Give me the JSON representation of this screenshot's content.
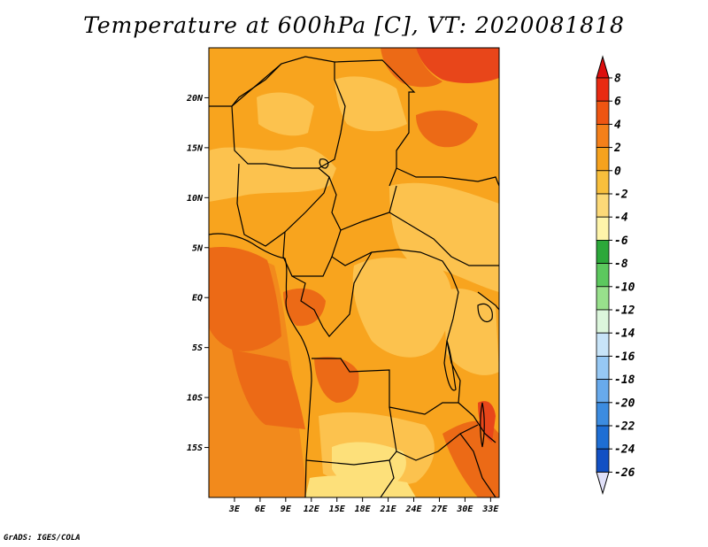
{
  "title": "Temperature at 600hPa [C], VT: 2020081818",
  "credit": "GrADS: IGES/COLA",
  "map": {
    "lon_range": [
      0,
      34
    ],
    "lat_range": [
      -20,
      25
    ],
    "lat_ticks": [
      {
        "value": 20,
        "label": "20N"
      },
      {
        "value": 15,
        "label": "15N"
      },
      {
        "value": 10,
        "label": "10N"
      },
      {
        "value": 5,
        "label": "5N"
      },
      {
        "value": 0,
        "label": "EQ"
      },
      {
        "value": -5,
        "label": "5S"
      },
      {
        "value": -10,
        "label": "10S"
      },
      {
        "value": -15,
        "label": "15S"
      }
    ],
    "lon_ticks": [
      {
        "value": 3,
        "label": "3E"
      },
      {
        "value": 6,
        "label": "6E"
      },
      {
        "value": 9,
        "label": "9E"
      },
      {
        "value": 12,
        "label": "12E"
      },
      {
        "value": 15,
        "label": "15E"
      },
      {
        "value": 18,
        "label": "18E"
      },
      {
        "value": 21,
        "label": "21E"
      },
      {
        "value": 24,
        "label": "24E"
      },
      {
        "value": 27,
        "label": "27E"
      },
      {
        "value": 30,
        "label": "30E"
      },
      {
        "value": 33,
        "label": "33E"
      }
    ]
  },
  "colorbar": {
    "levels": [
      "8",
      "6",
      "4",
      "2",
      "0",
      "-2",
      "-4",
      "-6",
      "-8",
      "-10",
      "-12",
      "-14",
      "-16",
      "-18",
      "-20",
      "-22",
      "-24",
      "-26"
    ],
    "colors": [
      "#e82a12",
      "#ee5512",
      "#f4801a",
      "#f6a21e",
      "#f8bf3c",
      "#fcd978",
      "#fef4aa",
      "#2ca83a",
      "#5cc85e",
      "#98e08c",
      "#dcf6dc",
      "#c8e4f8",
      "#96c8f4",
      "#68aaec",
      "#3c8ce0",
      "#1e6ed4",
      "#1250c4",
      "#0c34a8",
      "#0a1a7c"
    ],
    "top_triangle": "#dc0e0e",
    "bottom_triangle": "#e0e0f8"
  },
  "temperature_field": {
    "base": "#f8a41e",
    "pale": "#fcc24e",
    "warm": "#f28a1c",
    "hot": "#ec6a16",
    "hottest": "#e8461a",
    "cool": "#fde07a"
  }
}
